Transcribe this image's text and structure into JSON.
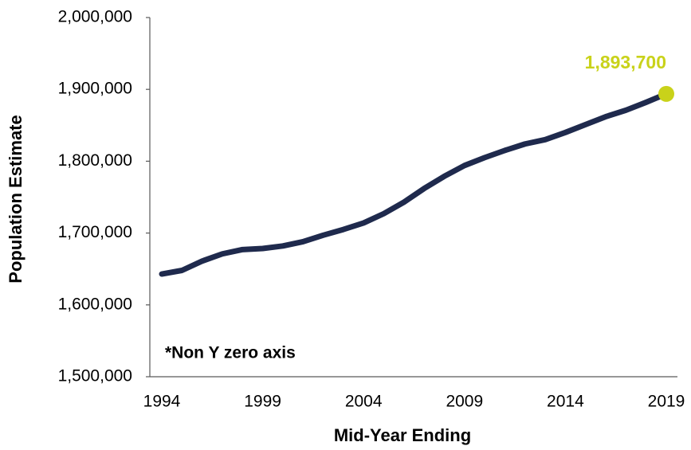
{
  "chart_data": {
    "type": "line",
    "x_label": "Mid-Year Ending",
    "y_label": "Population Estimate",
    "annotation": "*Non Y zero axis",
    "x": [
      1994,
      1995,
      1996,
      1997,
      1998,
      1999,
      2000,
      2001,
      2002,
      2003,
      2004,
      2005,
      2006,
      2007,
      2008,
      2009,
      2010,
      2011,
      2012,
      2013,
      2014,
      2015,
      2016,
      2017,
      2018,
      2019
    ],
    "series": [
      {
        "name": "Population Estimate",
        "color": "#1f2a4d",
        "values": [
          1643000,
          1648000,
          1661000,
          1671000,
          1677000,
          1678500,
          1682000,
          1688000,
          1697000,
          1705000,
          1714000,
          1727000,
          1743000,
          1762000,
          1779000,
          1794000,
          1805000,
          1815000,
          1824000,
          1830000,
          1840000,
          1851000,
          1862000,
          1871000,
          1882000,
          1893700
        ],
        "value_labels": [
          null,
          null,
          null,
          null,
          null,
          null,
          null,
          null,
          null,
          null,
          null,
          null,
          null,
          null,
          null,
          null,
          null,
          null,
          null,
          null,
          null,
          null,
          null,
          null,
          null,
          "1,893,700"
        ],
        "highlight_color": "#c9d21a"
      }
    ],
    "xlim": [
      1994,
      2019
    ],
    "xticks": [
      1994,
      1999,
      2004,
      2009,
      2014,
      2019
    ],
    "ylim": [
      1500000,
      2000000
    ],
    "yticks": [
      {
        "value": 1500000,
        "label": "1,500,000"
      },
      {
        "value": 1600000,
        "label": "1,600,000"
      },
      {
        "value": 1700000,
        "label": "1,700,000"
      },
      {
        "value": 1800000,
        "label": "1,800,000"
      },
      {
        "value": 1900000,
        "label": "1,900,000"
      },
      {
        "value": 2000000,
        "label": "2,000,000"
      }
    ]
  }
}
